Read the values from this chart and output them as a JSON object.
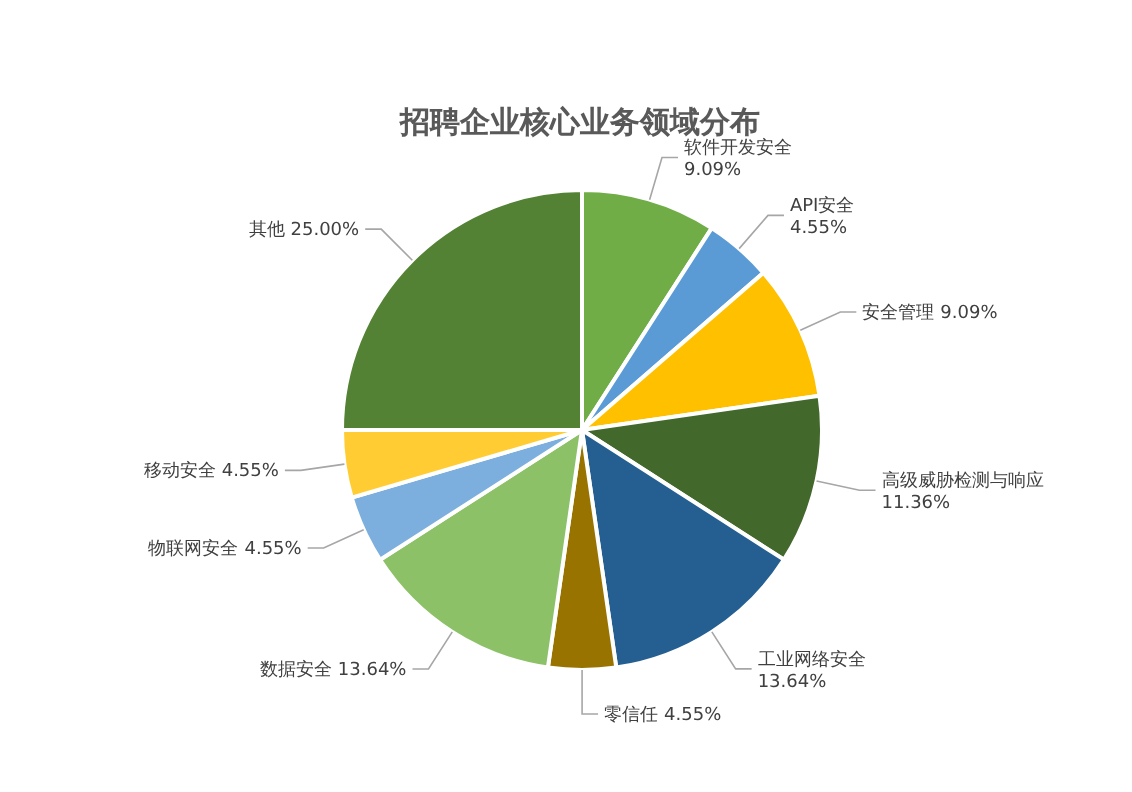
{
  "chart_data": {
    "type": "pie",
    "title": "招聘企业核心业务领域分布",
    "categories": [
      "软件开发安全",
      "API安全",
      "安全管理",
      "高级威胁检测与响应",
      "工业网络安全",
      "零信任",
      "数据安全",
      "物联网安全",
      "移动安全",
      "其他"
    ],
    "values": [
      9.09,
      4.55,
      9.09,
      11.36,
      13.64,
      4.55,
      13.64,
      4.55,
      4.55,
      25.0
    ],
    "colors": [
      "#70ad47",
      "#5b9bd5",
      "#ffc000",
      "#43682b",
      "#255e91",
      "#997300",
      "#8cc168",
      "#7cafdd",
      "#ffcd33",
      "#548235"
    ],
    "value_labels": [
      "9.09%",
      "4.55%",
      "9.09%",
      "11.36%",
      "13.64%",
      "4.55%",
      "13.64%",
      "4.55%",
      "4.55%",
      "25.00%"
    ]
  }
}
